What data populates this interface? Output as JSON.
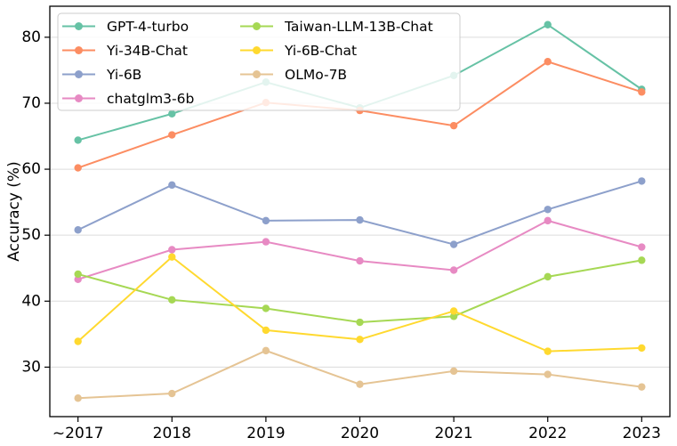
{
  "figure": {
    "background": "#ffffff",
    "spine_color": "#000000",
    "grid_color": "#dcdcdc",
    "legend_border_color": "#cccccc",
    "legend_background": "rgba(255,255,255,0.82)"
  },
  "chart_data": {
    "type": "line",
    "title": "",
    "xlabel": "",
    "ylabel": "Accuracy (%)",
    "categories": [
      "~2017",
      "2018",
      "2019",
      "2020",
      "2021",
      "2022",
      "2023"
    ],
    "yticks": [
      30,
      40,
      50,
      60,
      70,
      80
    ],
    "ylim": [
      22.5,
      84.7
    ],
    "xlim_pad": 0.3,
    "grid": "horizontal",
    "legend_position": "upper-left",
    "legend_columns": 2,
    "series": [
      {
        "name": "GPT-4-turbo",
        "color": "#66c2a5",
        "values": [
          64.4,
          68.4,
          73.2,
          69.3,
          74.2,
          81.9,
          72.1
        ]
      },
      {
        "name": "Yi-34B-Chat",
        "color": "#fc8d62",
        "values": [
          60.2,
          65.2,
          70.1,
          68.9,
          66.6,
          76.3,
          71.7
        ]
      },
      {
        "name": "Yi-6B",
        "color": "#8da0cb",
        "values": [
          50.8,
          57.6,
          52.2,
          52.3,
          48.6,
          53.9,
          58.2
        ]
      },
      {
        "name": "chatglm3-6b",
        "color": "#e78ac3",
        "values": [
          43.3,
          47.8,
          49.0,
          46.1,
          44.7,
          52.2,
          48.2
        ]
      },
      {
        "name": "Taiwan-LLM-13B-Chat",
        "color": "#a6d854",
        "values": [
          44.1,
          40.2,
          38.9,
          36.8,
          37.7,
          43.7,
          46.2
        ]
      },
      {
        "name": "Yi-6B-Chat",
        "color": "#ffd92f",
        "values": [
          33.9,
          46.7,
          35.6,
          34.2,
          38.5,
          32.4,
          32.9
        ]
      },
      {
        "name": "OLMo-7B",
        "color": "#e5c494",
        "values": [
          25.3,
          26.0,
          32.5,
          27.4,
          29.4,
          28.9,
          27.0
        ]
      }
    ]
  }
}
